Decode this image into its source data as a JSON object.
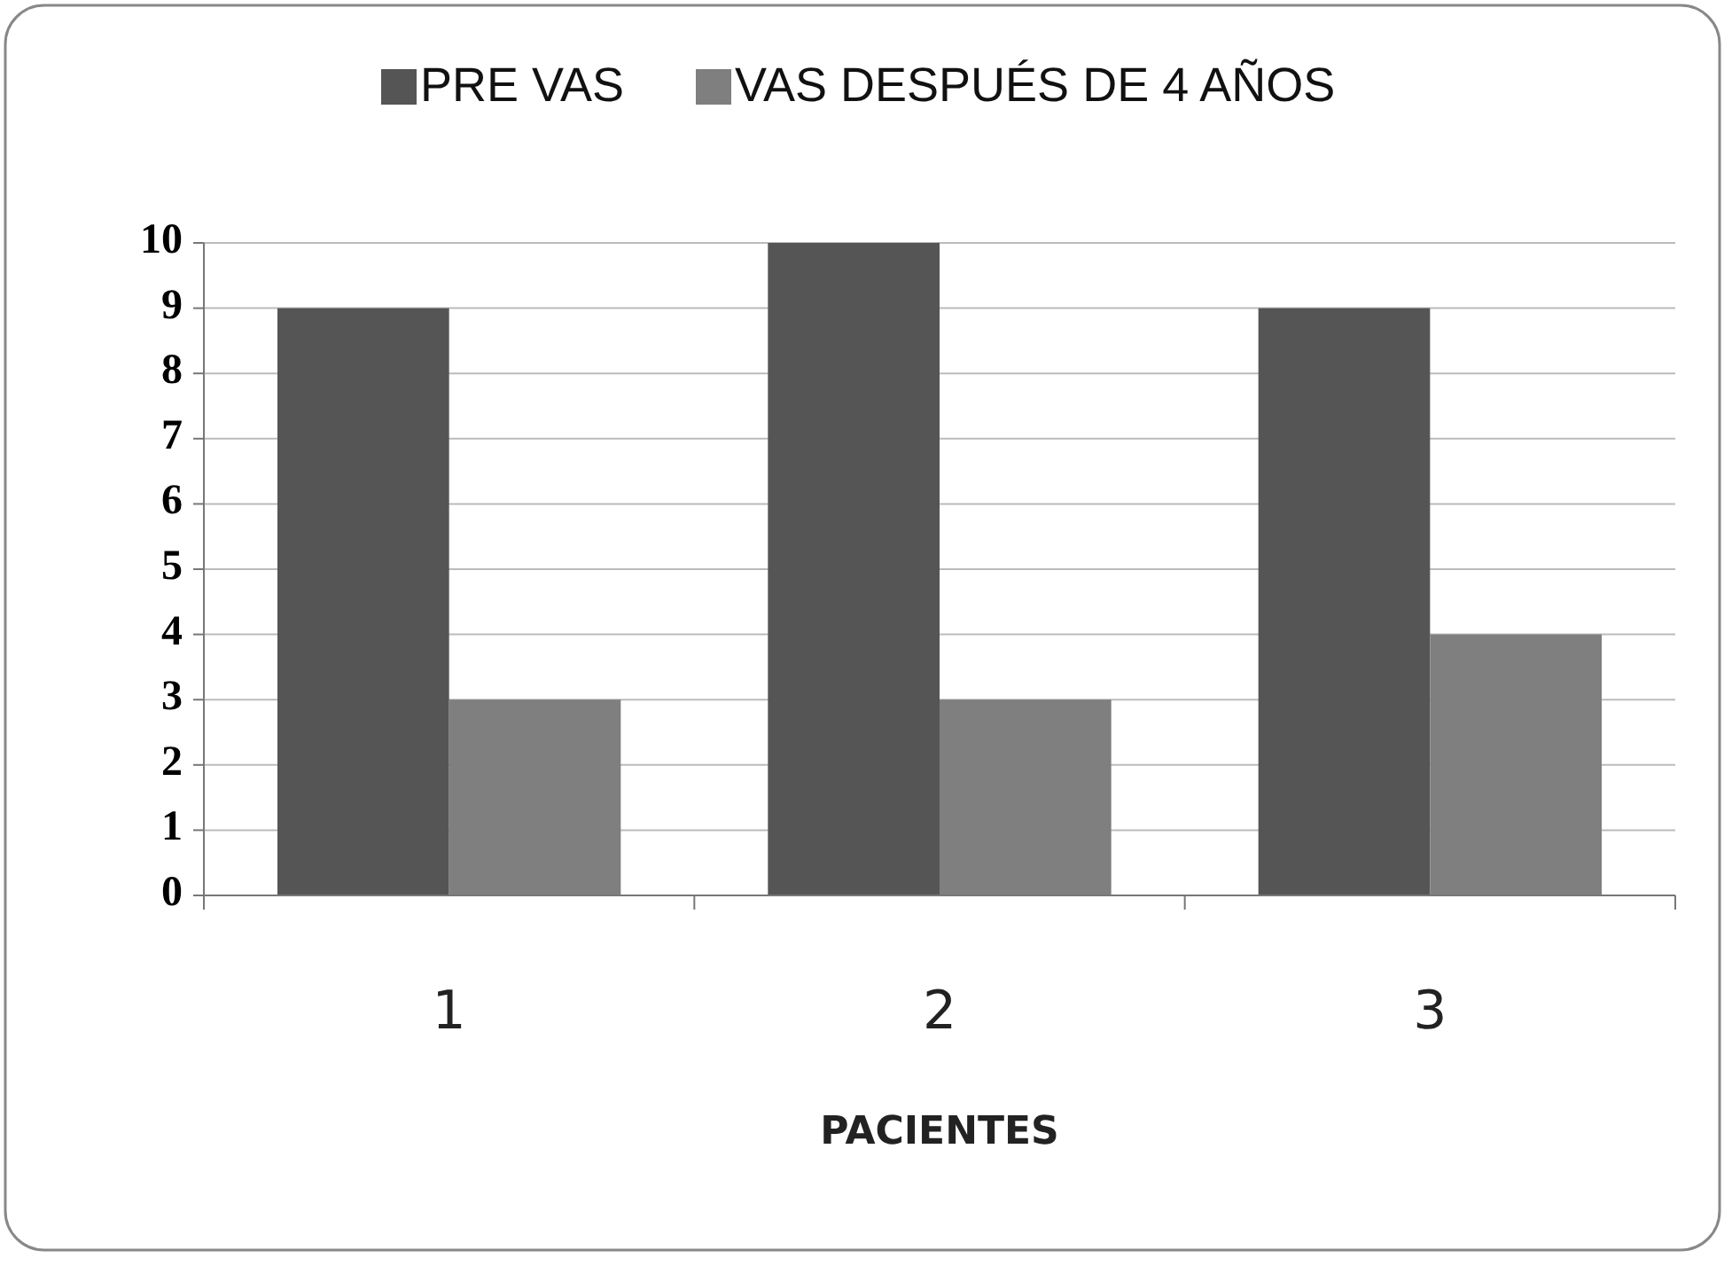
{
  "chart_data": {
    "type": "bar",
    "xlabel": "PACIENTES",
    "categories": [
      "1",
      "2",
      "3"
    ],
    "series": [
      {
        "name": "PRE VAS",
        "color": "#555555",
        "values": [
          9,
          10,
          9
        ]
      },
      {
        "name": "VAS DESPUÉS DE 4 AÑOS",
        "color": "#7f7f7f",
        "values": [
          3,
          3,
          4
        ]
      }
    ],
    "ylim": [
      0,
      10
    ],
    "yticks": [
      0,
      1,
      2,
      3,
      4,
      5,
      6,
      7,
      8,
      9,
      10
    ],
    "grid": "y",
    "legend": "top"
  }
}
